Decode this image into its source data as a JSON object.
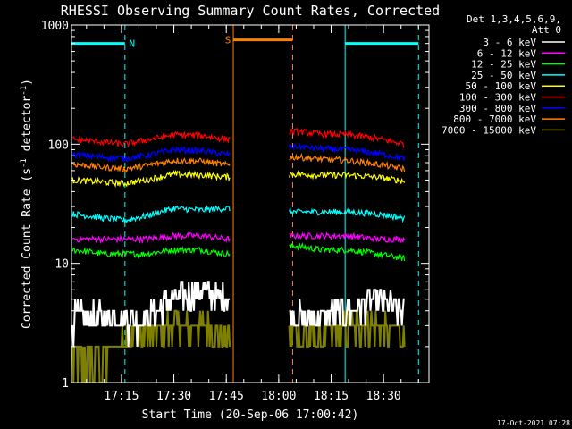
{
  "chart_data": {
    "type": "line",
    "title": "RHESSI Observing Summary Count Rates, Corrected",
    "xlabel": "Start Time (20-Sep-06 17:00:42)",
    "ylabel": "Corrected Count Rate (s⁻¹ detector⁻¹)",
    "ylabel_main": "Corrected Count Rate (s",
    "ylabel_sup1": "-1",
    "ylabel_mid": " detector",
    "ylabel_sup2": "-1",
    "ylabel_end": ")",
    "yscale": "log",
    "ylim": [
      1,
      1000
    ],
    "xlim": [
      "17:00:42",
      "18:43:00"
    ],
    "y_ticks": [
      {
        "value": 1,
        "label": "1"
      },
      {
        "value": 10,
        "label": "10"
      },
      {
        "value": 100,
        "label": "100"
      },
      {
        "value": 1000,
        "label": "1000"
      }
    ],
    "x_ticks": [
      {
        "value": "17:15",
        "label": "17:15"
      },
      {
        "value": "17:30",
        "label": "17:30"
      },
      {
        "value": "17:45",
        "label": "17:45"
      },
      {
        "value": "18:00",
        "label": "18:00"
      },
      {
        "value": "18:15",
        "label": "18:15"
      },
      {
        "value": "18:30",
        "label": "18:30"
      }
    ],
    "legend_header": [
      "Det 1,3,4,5,6,9,",
      "Att 0"
    ],
    "legend_position": "right",
    "data_gap": [
      "17:46",
      "18:03"
    ],
    "series": [
      {
        "name": "3 - 6 keV",
        "color": "#ffffff",
        "x": [
          "17:01",
          "17:10",
          "17:16",
          "17:22",
          "17:30",
          "17:38",
          "17:45",
          "18:05",
          "18:12",
          "18:20",
          "18:28",
          "18:36"
        ],
        "values": [
          3.5,
          3.5,
          3.5,
          3.5,
          5,
          6,
          5,
          3.5,
          3.5,
          4,
          5,
          4
        ]
      },
      {
        "name": "6 - 12 keV",
        "color": "#ff00ff",
        "x": [
          "17:01",
          "17:10",
          "17:16",
          "17:22",
          "17:30",
          "17:38",
          "17:45",
          "18:05",
          "18:12",
          "18:20",
          "18:28",
          "18:36"
        ],
        "values": [
          16,
          16,
          16,
          16,
          17,
          17,
          16,
          17,
          17,
          17,
          16,
          16
        ]
      },
      {
        "name": "12 - 25 keV",
        "color": "#00ff00",
        "x": [
          "17:01",
          "17:10",
          "17:16",
          "17:22",
          "17:30",
          "17:38",
          "17:45",
          "18:05",
          "18:12",
          "18:20",
          "18:28",
          "18:36"
        ],
        "values": [
          13,
          12,
          12,
          12,
          13,
          13,
          12,
          14,
          13,
          13,
          12,
          11
        ]
      },
      {
        "name": "25 - 50 keV",
        "color": "#00ffff",
        "x": [
          "17:01",
          "17:10",
          "17:16",
          "17:22",
          "17:30",
          "17:38",
          "17:45",
          "18:05",
          "18:12",
          "18:20",
          "18:28",
          "18:36"
        ],
        "values": [
          26,
          24,
          23,
          25,
          29,
          28,
          29,
          27,
          27,
          27,
          26,
          24
        ]
      },
      {
        "name": "50 - 100 keV",
        "color": "#ffff00",
        "x": [
          "17:01",
          "17:10",
          "17:16",
          "17:22",
          "17:30",
          "17:38",
          "17:45",
          "18:05",
          "18:12",
          "18:20",
          "18:28",
          "18:36"
        ],
        "values": [
          50,
          48,
          47,
          50,
          56,
          55,
          53,
          56,
          55,
          55,
          53,
          49
        ]
      },
      {
        "name": "100 - 300 keV",
        "color": "#ff0000",
        "x": [
          "17:01",
          "17:10",
          "17:16",
          "17:22",
          "17:30",
          "17:38",
          "17:45",
          "18:05",
          "18:12",
          "18:20",
          "18:28",
          "18:36"
        ],
        "values": [
          110,
          104,
          100,
          108,
          120,
          118,
          110,
          128,
          122,
          120,
          112,
          100
        ]
      },
      {
        "name": "300 - 800 keV",
        "color": "#0000ff",
        "x": [
          "17:01",
          "17:10",
          "17:16",
          "17:22",
          "17:30",
          "17:38",
          "17:45",
          "18:05",
          "18:12",
          "18:20",
          "18:28",
          "18:36"
        ],
        "values": [
          82,
          78,
          76,
          80,
          90,
          88,
          82,
          96,
          92,
          90,
          84,
          76
        ]
      },
      {
        "name": "800 - 7000 keV",
        "color": "#ff8000",
        "x": [
          "17:01",
          "17:10",
          "17:16",
          "17:22",
          "17:30",
          "17:38",
          "17:45",
          "18:05",
          "18:12",
          "18:20",
          "18:28",
          "18:36"
        ],
        "values": [
          68,
          64,
          62,
          66,
          73,
          72,
          67,
          78,
          75,
          73,
          68,
          62
        ]
      },
      {
        "name": "7000 - 15000 keV",
        "color": "#808000",
        "x": [
          "17:01",
          "17:10",
          "17:16",
          "17:22",
          "17:30",
          "17:38",
          "17:45",
          "18:05",
          "18:12",
          "18:20",
          "18:28",
          "18:36"
        ],
        "values": [
          1.6,
          1.6,
          2.5,
          2.5,
          3,
          3,
          2.5,
          2.5,
          2.5,
          3,
          3,
          2.5
        ]
      }
    ],
    "annotations": [
      {
        "label": "N",
        "color": "#00ffff",
        "type": "night",
        "segments": [
          [
            "17:00:42",
            "17:16"
          ],
          [
            "18:19",
            "18:40"
          ]
        ],
        "bar_value": 700,
        "edges": [
          {
            "t": "17:00:42",
            "style": "solid"
          },
          {
            "t": "17:16",
            "style": "dashed"
          },
          {
            "t": "18:19",
            "style": "solid"
          },
          {
            "t": "18:40",
            "style": "dashed"
          }
        ]
      },
      {
        "label": "S",
        "color": "#ff8000",
        "type": "saa",
        "segments": [
          [
            "17:47",
            "18:04"
          ]
        ],
        "bar_value": 750,
        "edges": [
          {
            "t": "17:47",
            "style": "solid"
          },
          {
            "t": "18:04",
            "style": "dashed"
          }
        ]
      }
    ]
  },
  "footer": {
    "timestamp": "17-Oct-2021 07:28"
  }
}
